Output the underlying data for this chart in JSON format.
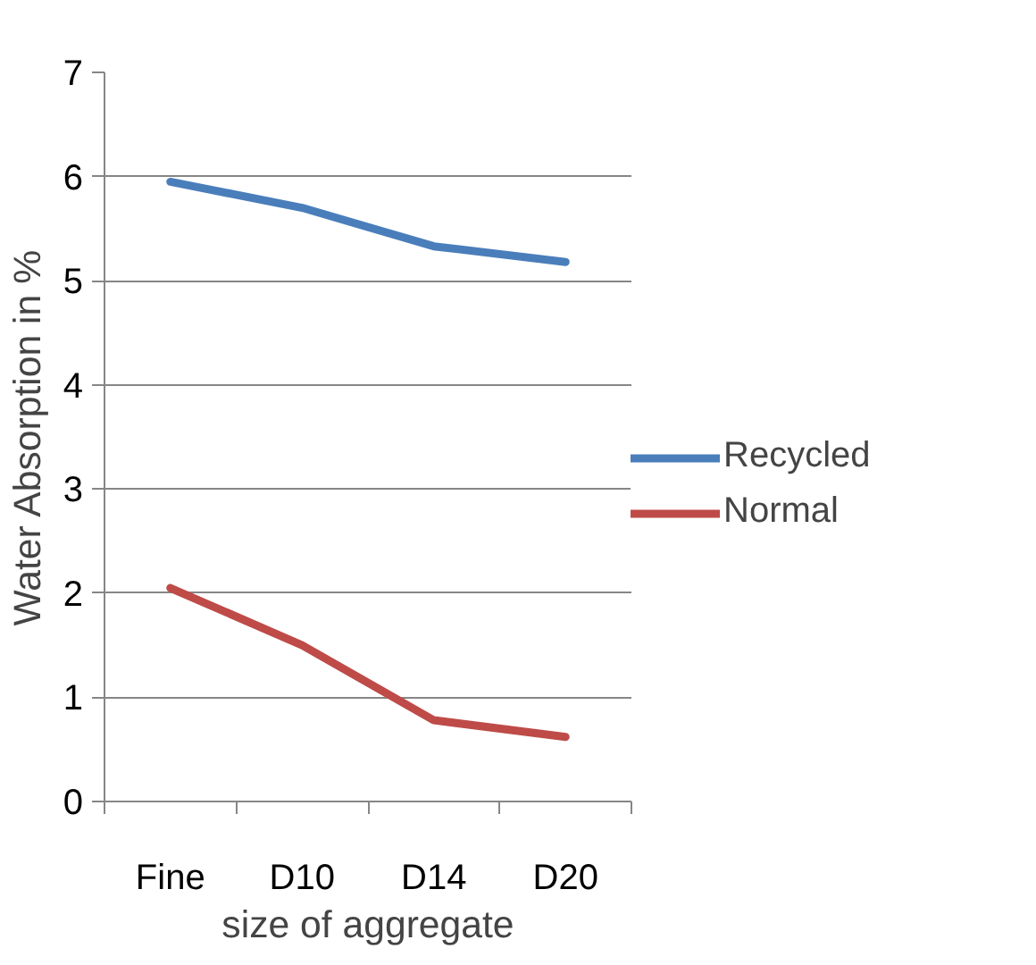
{
  "chart_data": {
    "type": "line",
    "xlabel": "size of aggregate",
    "ylabel": "Water Absorption in %",
    "categories": [
      "Fine",
      "D10",
      "D14",
      "D20"
    ],
    "series": [
      {
        "name": "Recycled",
        "color": "#4a7ebb",
        "values": [
          5.95,
          5.7,
          5.33,
          5.18
        ]
      },
      {
        "name": "Normal",
        "color": "#be4b48",
        "values": [
          2.05,
          1.5,
          0.78,
          0.62
        ]
      }
    ],
    "ylim": [
      0,
      7
    ],
    "yticks": [
      0,
      1,
      2,
      3,
      4,
      5,
      6,
      7
    ],
    "grid": "y",
    "legend": "right",
    "marker": "none",
    "line_style": "solid"
  }
}
